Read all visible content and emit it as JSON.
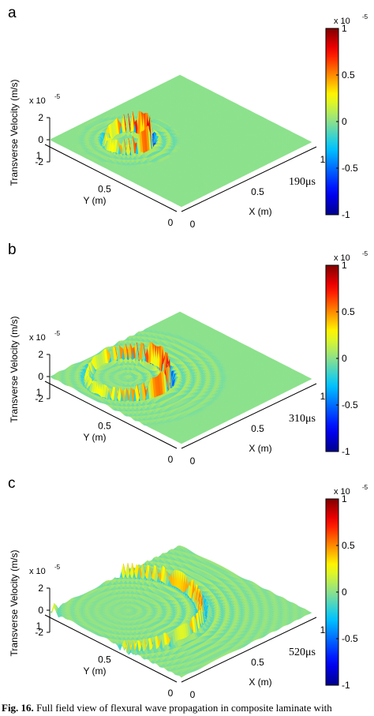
{
  "chart_data": [
    {
      "type": "surface",
      "panel_label": "a",
      "time_label": "190μs",
      "xlabel": "X (m)",
      "ylabel": "Y (m)",
      "zlabel": "Transverse Velocity (m/s)",
      "z_exponent": "x 10",
      "z_exponent_power": "-5",
      "x_ticks": [
        "0",
        "0.5",
        "1"
      ],
      "y_ticks": [
        "0",
        "0.5",
        "1"
      ],
      "z_ticks": [
        "2",
        "0",
        "-2"
      ],
      "colorbar_exponent": "x 10",
      "colorbar_exponent_power": "-5",
      "colorbar_ticks": [
        "1",
        "0.5",
        "0",
        "-0.5",
        "-1"
      ],
      "colorbar_range": [
        -1,
        1
      ],
      "wave": {
        "source": [
          0.3,
          0.7
        ],
        "radius": 0.12,
        "ring_extent": 0.15,
        "peak_amplitude": 1.8
      }
    },
    {
      "type": "surface",
      "panel_label": "b",
      "time_label": "310μs",
      "xlabel": "X (m)",
      "ylabel": "Y (m)",
      "zlabel": "Transverse Velocity (m/s)",
      "z_exponent": "x 10",
      "z_exponent_power": "-5",
      "x_ticks": [
        "0",
        "0.5",
        "1"
      ],
      "y_ticks": [
        "0",
        "0.5",
        "1"
      ],
      "z_ticks": [
        "2",
        "0",
        "-2"
      ],
      "colorbar_exponent": "x 10",
      "colorbar_exponent_power": "-5",
      "colorbar_ticks": [
        "1",
        "0.5",
        "0",
        "-0.5",
        "-1"
      ],
      "colorbar_range": [
        -1,
        1
      ],
      "wave": {
        "source": [
          0.3,
          0.7
        ],
        "radius": 0.22,
        "ring_extent": 0.3,
        "peak_amplitude": 1.6
      }
    },
    {
      "type": "surface",
      "panel_label": "c",
      "time_label": "520μs",
      "xlabel": "X (m)",
      "ylabel": "Y (m)",
      "zlabel": "Transverse Velocity (m/s)",
      "z_exponent": "x 10",
      "z_exponent_power": "-5",
      "x_ticks": [
        "0",
        "0.5",
        "1"
      ],
      "y_ticks": [
        "0",
        "0.5",
        "1"
      ],
      "z_ticks": [
        "2",
        "0",
        "-2"
      ],
      "colorbar_exponent": "x 10",
      "colorbar_exponent_power": "-5",
      "colorbar_ticks": [
        "1",
        "0.5",
        "0",
        "-0.5",
        "-1"
      ],
      "colorbar_range": [
        -1,
        1
      ],
      "wave": {
        "source": [
          0.3,
          0.7
        ],
        "radius": 0.4,
        "ring_extent": 0.6,
        "peak_amplitude": 1.5
      }
    }
  ],
  "caption": {
    "label": "Fig. 16.",
    "text": "Full field view of flexural wave propagation in composite laminate with"
  },
  "colors": {
    "surface": "#8fe08a",
    "ridge_red": "#b01010",
    "trough_blue": "#1030c8",
    "axis": "#000000"
  }
}
